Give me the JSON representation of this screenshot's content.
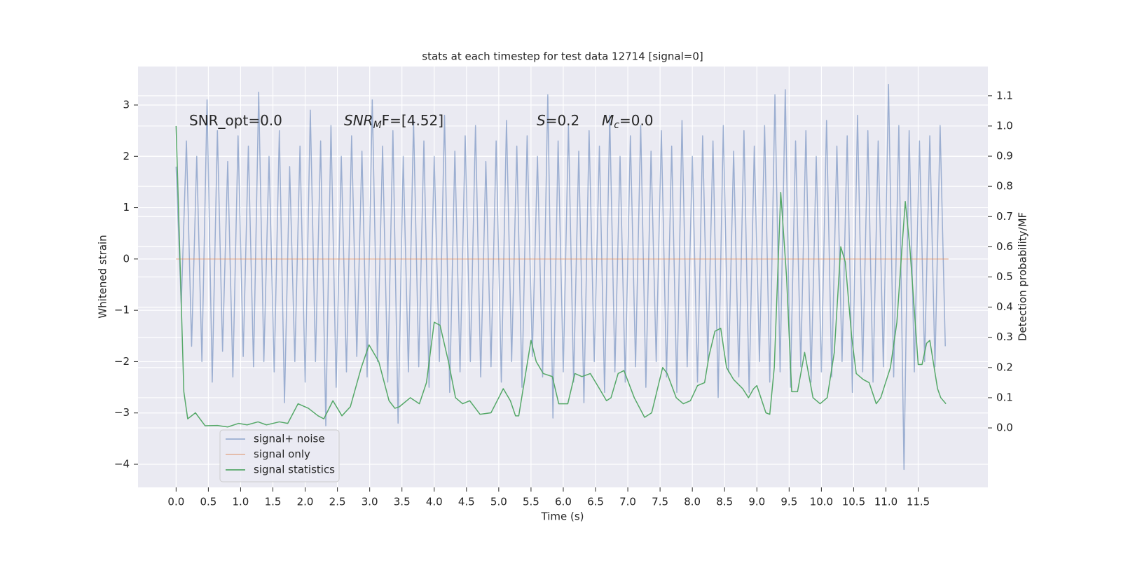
{
  "chart_data": {
    "type": "line",
    "title": "stats at each timestep for test data 12714 [signal=0]",
    "xlabel": "Time (s)",
    "ylabel": "Whitened strain",
    "y2label": "Detection probability/MF",
    "annotations": [
      {
        "main": "SNR_opt=0.0"
      },
      {
        "main": "SNR",
        "sub": "M",
        "tail": "F=[4.52]"
      },
      {
        "main": "S",
        "tail": "=0.2"
      },
      {
        "main": "M",
        "sub": "c",
        "tail": "=0.0"
      }
    ],
    "xlim": [
      -0.59,
      12.58
    ],
    "ylim": [
      -4.45,
      3.75
    ],
    "y2lim": [
      -0.197,
      1.197
    ],
    "xticks": [
      {
        "value": 0,
        "label": "0.0"
      },
      0.5,
      {
        "value": 1,
        "label": "1.0"
      },
      1.5,
      {
        "value": 2,
        "label": "2.0"
      },
      2.5,
      {
        "value": 3,
        "label": "3.0"
      },
      3.5,
      {
        "value": 4,
        "label": "4.0"
      },
      4.5,
      {
        "value": 5,
        "label": "5.0"
      },
      5.5,
      {
        "value": 6,
        "label": "6.0"
      },
      6.5,
      {
        "value": 7,
        "label": "7.0"
      },
      7.5,
      {
        "value": 8,
        "label": "8.0"
      },
      8.5,
      {
        "value": 9,
        "label": "9.0"
      },
      9.5,
      {
        "value": 10,
        "label": "10.0"
      },
      10.5,
      {
        "value": 11,
        "label": "11.0"
      },
      11.5
    ],
    "yticks": [
      {
        "value": -4,
        "label": "−4"
      },
      {
        "value": -3,
        "label": "−3"
      },
      {
        "value": -2,
        "label": "−2"
      },
      {
        "value": -1,
        "label": "−1"
      },
      0,
      1,
      2,
      3
    ],
    "y2ticks": [
      {
        "value": 0,
        "label": "0.0"
      },
      0.1,
      0.2,
      0.3,
      0.4,
      0.5,
      0.6,
      0.7,
      0.8,
      0.9,
      {
        "value": 1,
        "label": "1.0"
      },
      1.1
    ],
    "grid": true,
    "legend": "lower left",
    "series": [
      {
        "name": "signal+ noise",
        "color": "#4c72b0",
        "alpha": 0.5,
        "x": [
          0,
          0.08,
          0.16,
          0.24,
          0.32,
          0.4,
          0.48,
          0.56,
          0.64,
          0.72,
          0.8,
          0.88,
          0.96,
          1.04,
          1.12,
          1.2,
          1.28,
          1.36,
          1.44,
          1.52,
          1.6,
          1.68,
          1.76,
          1.84,
          1.92,
          2,
          2.08,
          2.16,
          2.24,
          2.32,
          2.4,
          2.48,
          2.56,
          2.64,
          2.72,
          2.8,
          2.88,
          2.96,
          3.04,
          3.12,
          3.2,
          3.28,
          3.36,
          3.44,
          3.52,
          3.6,
          3.68,
          3.76,
          3.84,
          3.92,
          4,
          4.08,
          4.16,
          4.24,
          4.32,
          4.4,
          4.48,
          4.56,
          4.64,
          4.72,
          4.8,
          4.88,
          4.96,
          5.04,
          5.12,
          5.2,
          5.28,
          5.36,
          5.44,
          5.52,
          5.6,
          5.68,
          5.76,
          5.84,
          5.92,
          6,
          6.08,
          6.16,
          6.24,
          6.32,
          6.4,
          6.48,
          6.56,
          6.64,
          6.72,
          6.8,
          6.88,
          6.96,
          7.04,
          7.12,
          7.2,
          7.28,
          7.36,
          7.44,
          7.52,
          7.6,
          7.68,
          7.76,
          7.84,
          7.92,
          8,
          8.08,
          8.16,
          8.24,
          8.32,
          8.4,
          8.48,
          8.56,
          8.64,
          8.72,
          8.8,
          8.88,
          8.96,
          9.04,
          9.12,
          9.2,
          9.28,
          9.36,
          9.44,
          9.52,
          9.6,
          9.68,
          9.76,
          9.84,
          9.92,
          10,
          10.08,
          10.16,
          10.24,
          10.32,
          10.4,
          10.48,
          10.56,
          10.64,
          10.72,
          10.8,
          10.88,
          10.96,
          11.04,
          11.12,
          11.2,
          11.28,
          11.36,
          11.44,
          11.52,
          11.6,
          11.68,
          11.76,
          11.84,
          11.92
        ],
        "values": [
          1.8,
          -0.9,
          2.3,
          -1.7,
          2.0,
          -2.0,
          3.1,
          -2.4,
          2.5,
          -1.8,
          1.9,
          -2.3,
          2.4,
          -1.9,
          2.2,
          -2.1,
          3.25,
          -2.0,
          2.0,
          -2.2,
          2.5,
          -2.8,
          1.8,
          -2.0,
          2.2,
          -2.4,
          2.9,
          -2.0,
          2.3,
          -3.25,
          2.6,
          -2.5,
          2.0,
          -2.2,
          2.4,
          -1.9,
          2.1,
          -2.3,
          3.1,
          -2.0,
          2.2,
          -2.4,
          2.5,
          -3.2,
          2.0,
          -2.2,
          2.7,
          -2.1,
          2.3,
          -2.5,
          2.0,
          -2.0,
          2.8,
          -2.6,
          2.1,
          -2.2,
          2.4,
          -2.0,
          2.6,
          -2.3,
          1.9,
          -2.1,
          2.3,
          -2.4,
          2.7,
          -2.0,
          2.2,
          -2.5,
          2.4,
          -1.9,
          2.0,
          -2.3,
          3.2,
          -3.1,
          2.3,
          -2.2,
          2.6,
          -2.4,
          2.1,
          -2.8,
          2.5,
          -2.0,
          2.2,
          -2.6,
          2.8,
          -2.2,
          2.0,
          -2.4,
          2.4,
          -2.1,
          2.6,
          -2.5,
          2.1,
          -2.0,
          2.5,
          -2.3,
          2.2,
          -2.6,
          2.7,
          -2.1,
          2.0,
          -2.4,
          2.4,
          -2.0,
          2.3,
          -2.7,
          2.6,
          -2.2,
          2.1,
          -2.3,
          2.5,
          -2.6,
          2.2,
          -2.0,
          2.6,
          -2.4,
          3.2,
          -2.2,
          3.3,
          -2.5,
          2.3,
          -2.1,
          2.5,
          -2.4,
          2.0,
          -2.2,
          2.7,
          -2.3,
          2.2,
          -2.0,
          2.4,
          -2.6,
          2.8,
          -2.2,
          2.5,
          -2.4,
          2.3,
          -2.1,
          3.4,
          -2.3,
          2.6,
          -4.1,
          2.5,
          -2.2,
          2.3,
          -2.0,
          2.4,
          -2.1,
          2.6,
          -1.7
        ]
      },
      {
        "name": "signal only",
        "color": "#dd8452",
        "alpha": 0.5,
        "x": [
          0,
          11.97
        ],
        "values": [
          0,
          0
        ]
      },
      {
        "name": "signal statistics",
        "color": "#55a868",
        "alpha": 1,
        "axis": "y2",
        "x": [
          0,
          0.12,
          0.18,
          0.3,
          0.45,
          0.64,
          0.8,
          0.97,
          1.1,
          1.27,
          1.4,
          1.6,
          1.73,
          1.89,
          2.05,
          2.2,
          2.29,
          2.43,
          2.57,
          2.7,
          2.87,
          2.99,
          3.14,
          3.3,
          3.39,
          3.46,
          3.63,
          3.77,
          3.88,
          4.0,
          4.09,
          4.22,
          4.33,
          4.44,
          4.55,
          4.71,
          4.88,
          5.0,
          5.07,
          5.18,
          5.26,
          5.31,
          5.5,
          5.58,
          5.69,
          5.83,
          5.93,
          6.07,
          6.18,
          6.29,
          6.42,
          6.56,
          6.67,
          6.74,
          6.85,
          6.94,
          7.1,
          7.26,
          7.37,
          7.54,
          7.61,
          7.75,
          7.86,
          7.97,
          8.08,
          8.19,
          8.26,
          8.35,
          8.44,
          8.53,
          8.64,
          8.78,
          8.87,
          8.95,
          9.0,
          9.14,
          9.2,
          9.27,
          9.37,
          9.46,
          9.54,
          9.63,
          9.74,
          9.87,
          9.98,
          10.09,
          10.2,
          10.3,
          10.37,
          10.47,
          10.54,
          10.65,
          10.74,
          10.85,
          10.92,
          11.07,
          11.17,
          11.25,
          11.3,
          11.37,
          11.5,
          11.56,
          11.63,
          11.68,
          11.8,
          11.85,
          11.93
        ],
        "values": [
          1.0,
          0.12,
          0.03,
          0.05,
          0.007,
          0.008,
          0.003,
          0.015,
          0.01,
          0.02,
          0.01,
          0.02,
          0.015,
          0.08,
          0.065,
          0.04,
          0.03,
          0.09,
          0.04,
          0.07,
          0.2,
          0.275,
          0.22,
          0.09,
          0.065,
          0.07,
          0.1,
          0.08,
          0.15,
          0.35,
          0.34,
          0.22,
          0.1,
          0.08,
          0.09,
          0.045,
          0.05,
          0.1,
          0.13,
          0.09,
          0.04,
          0.04,
          0.29,
          0.22,
          0.18,
          0.17,
          0.08,
          0.08,
          0.18,
          0.17,
          0.18,
          0.13,
          0.09,
          0.1,
          0.18,
          0.19,
          0.1,
          0.035,
          0.05,
          0.2,
          0.18,
          0.1,
          0.08,
          0.09,
          0.14,
          0.15,
          0.24,
          0.32,
          0.33,
          0.2,
          0.16,
          0.13,
          0.1,
          0.13,
          0.14,
          0.05,
          0.045,
          0.2,
          0.78,
          0.5,
          0.12,
          0.12,
          0.25,
          0.1,
          0.08,
          0.1,
          0.25,
          0.6,
          0.55,
          0.3,
          0.18,
          0.16,
          0.15,
          0.08,
          0.1,
          0.2,
          0.35,
          0.6,
          0.75,
          0.6,
          0.21,
          0.21,
          0.28,
          0.29,
          0.13,
          0.1,
          0.08
        ]
      }
    ]
  }
}
